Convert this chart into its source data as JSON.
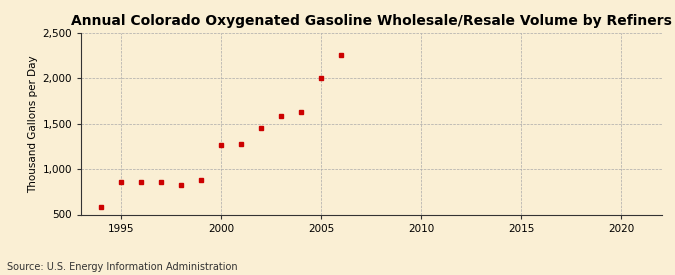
{
  "title": "Annual Colorado Oxygenated Gasoline Wholesale/Resale Volume by Refiners",
  "ylabel": "Thousand Gallons per Day",
  "source": "Source: U.S. Energy Information Administration",
  "background_color": "#faefd4",
  "marker_color": "#cc0000",
  "years": [
    1994,
    1995,
    1996,
    1997,
    1998,
    1999,
    2000,
    2001,
    2002,
    2003,
    2004,
    2005,
    2006
  ],
  "values": [
    580,
    855,
    855,
    855,
    830,
    875,
    1270,
    1280,
    1450,
    1580,
    1625,
    2000,
    2260
  ],
  "xlim": [
    1993,
    2022
  ],
  "ylim": [
    500,
    2500
  ],
  "yticks": [
    500,
    1000,
    1500,
    2000,
    2500
  ],
  "ytick_labels": [
    "500",
    "1,000",
    "1,500",
    "2,000",
    "2,500"
  ],
  "xticks": [
    1995,
    2000,
    2005,
    2010,
    2015,
    2020
  ],
  "title_fontsize": 10,
  "label_fontsize": 7.5,
  "tick_fontsize": 7.5,
  "source_fontsize": 7
}
